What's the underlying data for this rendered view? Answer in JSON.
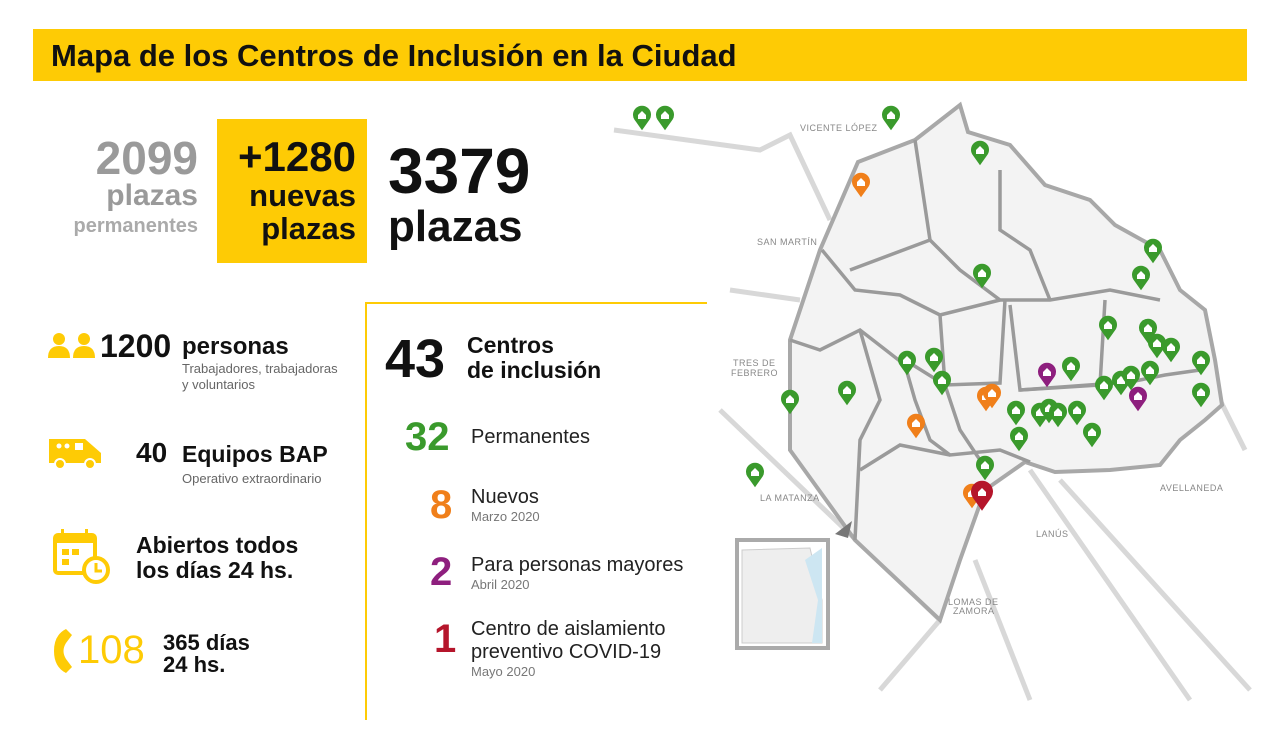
{
  "title": "Mapa de los Centros de Inclusión en la Ciudad",
  "plazas": {
    "permanentes": {
      "value": "2099",
      "label": "plazas",
      "sub": "permanentes"
    },
    "nuevas": {
      "value": "+1280",
      "label1": "nuevas",
      "label2": "plazas"
    },
    "total": {
      "value": "3379",
      "label": "plazas"
    }
  },
  "stats": [
    {
      "icon": "people-icon",
      "value": "1200",
      "label": "personas",
      "sub1": "Trabajadores, trabajadoras",
      "sub2": "y voluntarios"
    },
    {
      "icon": "van-icon",
      "value": "40",
      "label": "Equipos BAP",
      "sub1": "Operativo extraordinario"
    },
    {
      "icon": "calendar-clock-icon",
      "line1": "Abiertos todos",
      "line2": "los días 24 hs."
    },
    {
      "icon": "phone-icon",
      "value": "108",
      "line1": "365 días",
      "line2": "24 hs."
    }
  ],
  "centros": {
    "total": "43",
    "label1": "Centros",
    "label2": "de inclusión",
    "items": [
      {
        "value": "32",
        "label": "Permanentes",
        "color": "#3a9a2c"
      },
      {
        "value": "8",
        "label": "Nuevos",
        "date": "Marzo 2020",
        "color": "#f07f1a"
      },
      {
        "value": "2",
        "label": "Para personas mayores",
        "date": "Abril 2020",
        "color": "#8e1f7e"
      },
      {
        "value": "1",
        "label1": "Centro de aislamiento",
        "label2": "preventivo COVID-19",
        "date": "Mayo 2020",
        "color": "#b5152b"
      }
    ]
  },
  "map": {
    "labels": [
      "VICENTE LÓPEZ",
      "SAN MARTÍN",
      "TRES DE",
      "FEBRERO",
      "LA MATANZA",
      "AVELLANEDA",
      "LANÚS",
      "LOMAS DE",
      "ZAMORA"
    ]
  },
  "colors": {
    "accent": "#fecb05",
    "permanent": "#3a9a2c",
    "new": "#f07f1a",
    "elderly": "#8e1f7e",
    "covid": "#b5152b"
  }
}
